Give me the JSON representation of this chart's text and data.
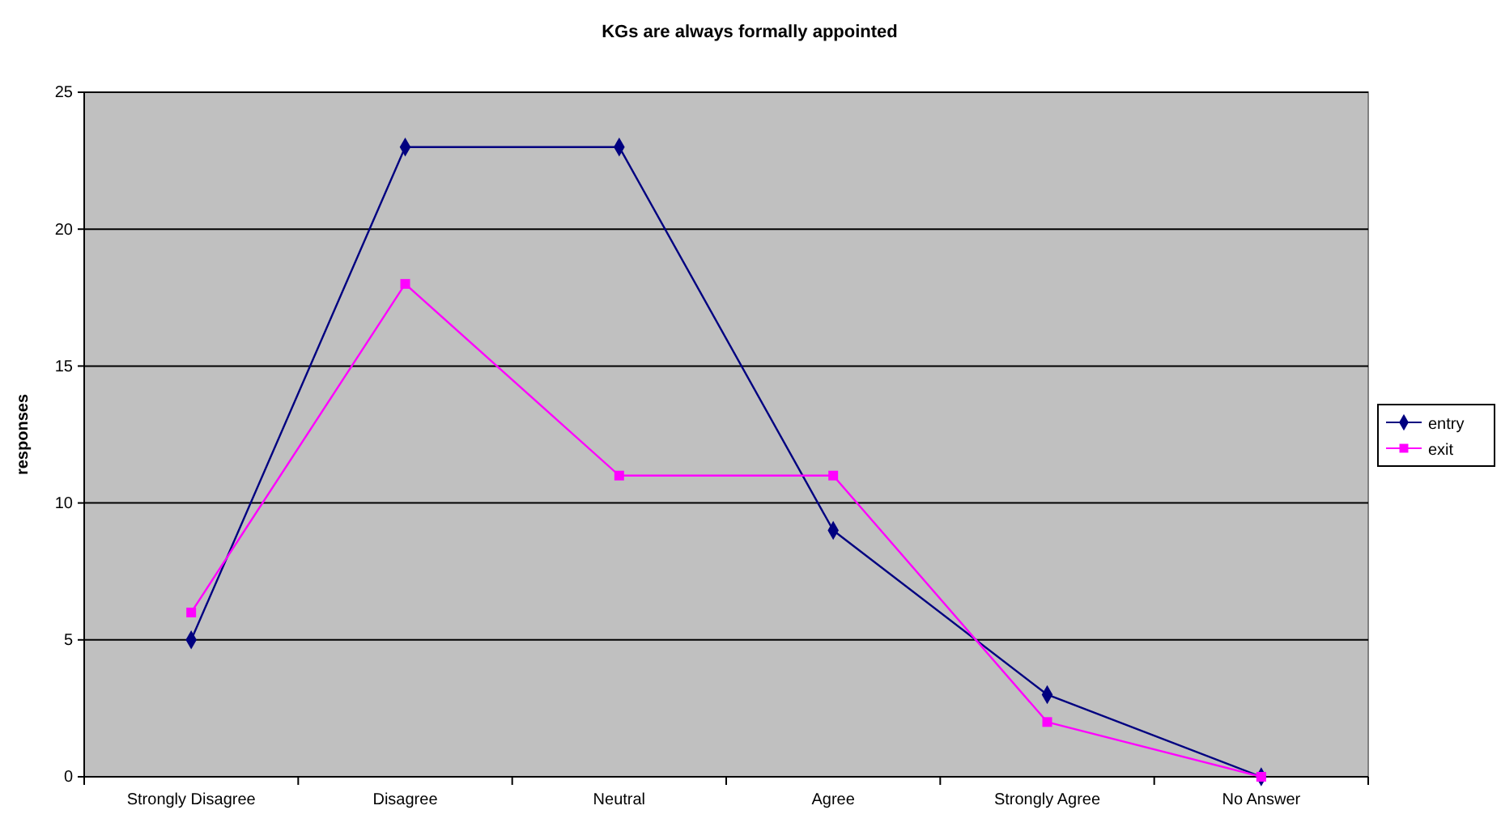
{
  "chart_data": {
    "type": "line",
    "title": "KGs are always formally appointed",
    "ylabel": "responses",
    "categories": [
      "Strongly Disagree",
      "Disagree",
      "Neutral",
      "Agree",
      "Strongly Agree",
      "No Answer"
    ],
    "series": [
      {
        "name": "entry",
        "color": "#000080",
        "marker": "diamond",
        "values": [
          5,
          23,
          23,
          9,
          3,
          0
        ]
      },
      {
        "name": "exit",
        "color": "#ff00ff",
        "marker": "square",
        "values": [
          6,
          18,
          11,
          11,
          2,
          0
        ]
      }
    ],
    "ylim": [
      0,
      25
    ],
    "yticks": [
      0,
      5,
      10,
      15,
      20,
      25
    ],
    "grid": "y",
    "legend": "right",
    "line_style": "solid"
  }
}
